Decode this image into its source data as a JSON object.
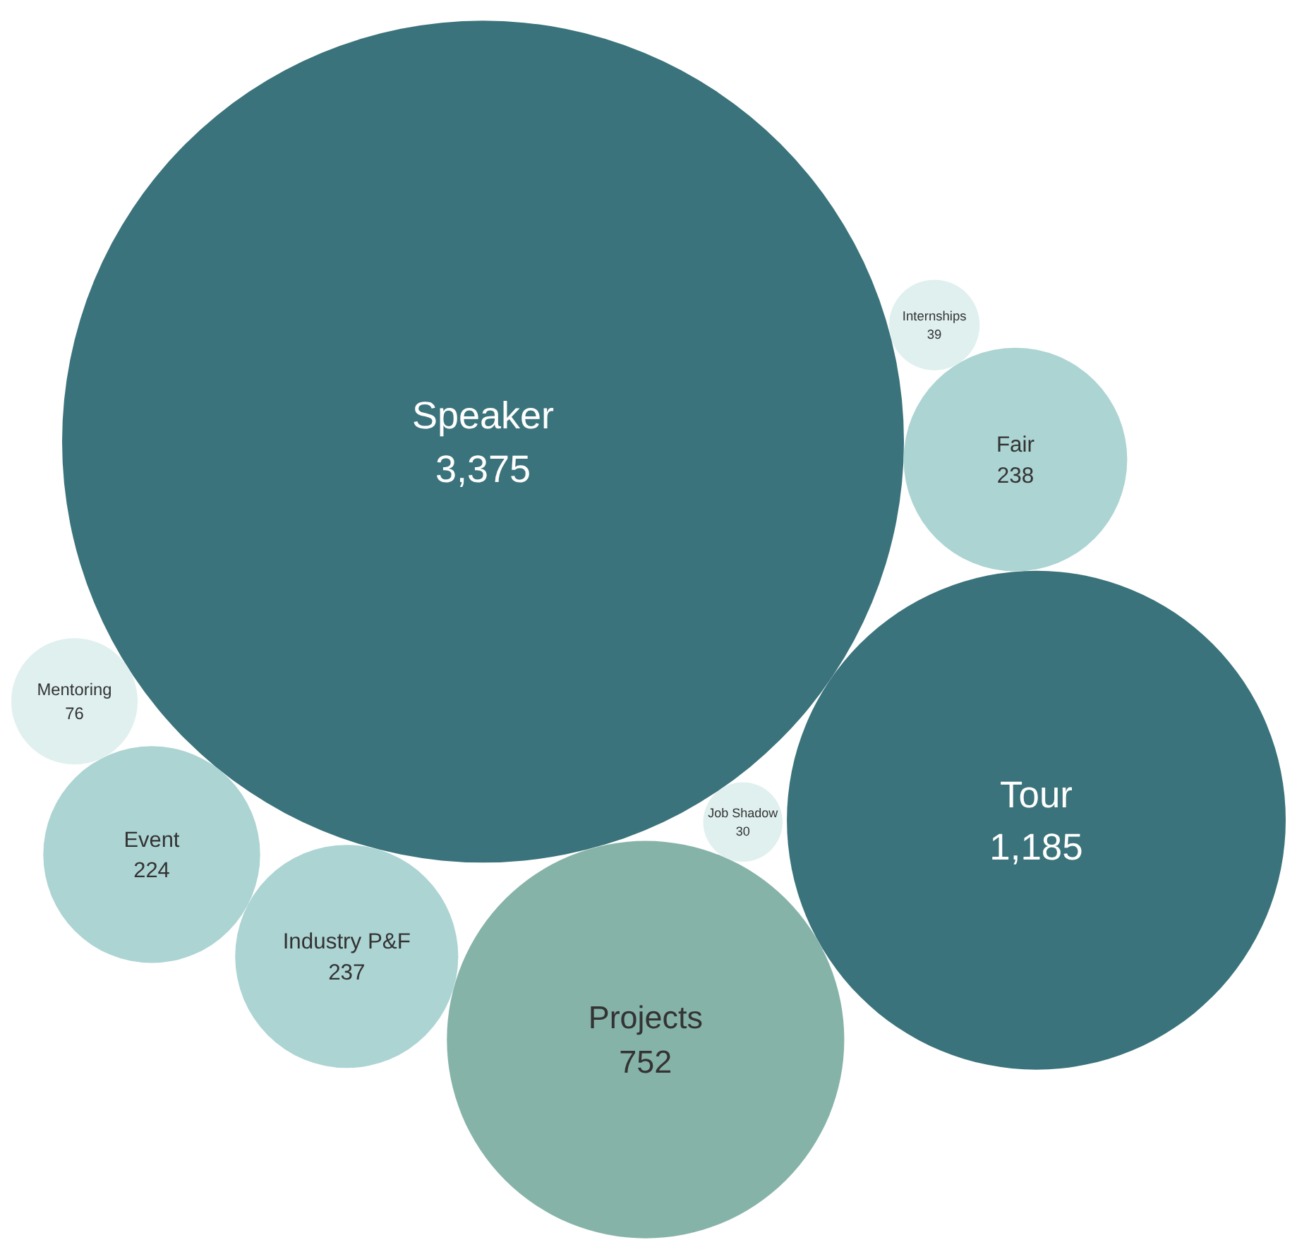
{
  "chart_data": {
    "type": "other",
    "categories": [
      "Speaker",
      "Tour",
      "Projects",
      "Fair",
      "Industry P&F",
      "Event",
      "Mentoring",
      "Internships",
      "Job Shadow"
    ],
    "values": [
      3375,
      1185,
      752,
      238,
      237,
      224,
      76,
      39,
      30
    ],
    "colors": [
      "#3a737b",
      "#3a737b",
      "#86b3a8",
      "#acd4d3",
      "#acd4d3",
      "#acd4d3",
      "#dff0ef",
      "#dff0ef",
      "#dff0ef"
    ],
    "value_labels": [
      "3,375",
      "1,185",
      "752",
      "238",
      "237",
      "224",
      "76",
      "39",
      "30"
    ]
  }
}
